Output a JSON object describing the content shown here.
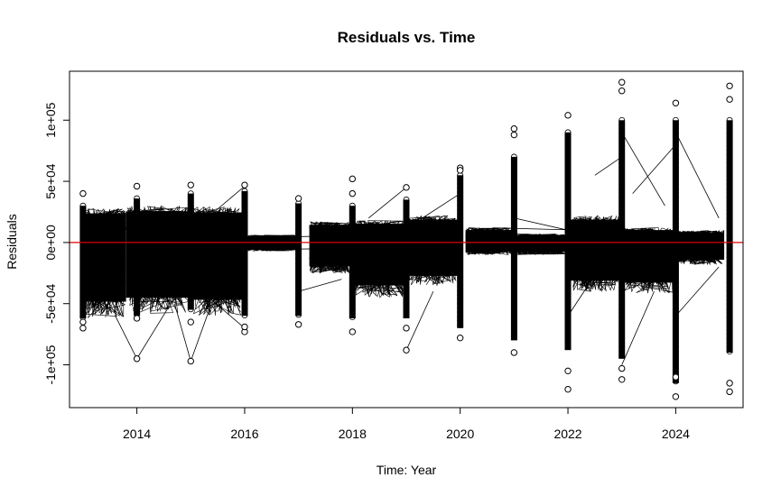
{
  "chart_data": {
    "type": "scatter",
    "title": "Residuals vs. Time",
    "xlabel": "Time: Year",
    "ylabel": "Residuals",
    "xlim": [
      2012.75,
      2025.25
    ],
    "ylim": [
      -135000,
      140000
    ],
    "x_ticks": [
      2014,
      2016,
      2018,
      2020,
      2022,
      2024
    ],
    "x_tick_labels": [
      "2014",
      "2016",
      "2018",
      "2020",
      "2022",
      "2024"
    ],
    "y_ticks": [
      -100000,
      -50000,
      0,
      50000,
      100000
    ],
    "y_tick_labels": [
      "-1e+05",
      "-5e+04",
      "0e+00",
      "5e+04",
      "1e+05"
    ],
    "reference_line": {
      "y": 0,
      "color": "#dd0000"
    },
    "grid": false,
    "line_color": "#000000",
    "band_ranges": [
      {
        "from": 2013.0,
        "to": 2013.8,
        "low": -62000,
        "high": 28000
      },
      {
        "from": 2013.8,
        "to": 2015.0,
        "low": -58000,
        "high": 30000
      },
      {
        "from": 2015.0,
        "to": 2015.95,
        "low": -60000,
        "high": 29000
      },
      {
        "from": 2016.0,
        "to": 2017.0,
        "low": -7000,
        "high": 6000
      },
      {
        "from": 2017.2,
        "to": 2017.95,
        "low": -25000,
        "high": 17000
      },
      {
        "from": 2018.0,
        "to": 2019.0,
        "low": -45000,
        "high": 18000
      },
      {
        "from": 2019.0,
        "to": 2019.95,
        "low": -35000,
        "high": 22000
      },
      {
        "from": 2020.1,
        "to": 2020.95,
        "low": -10000,
        "high": 12000
      },
      {
        "from": 2021.0,
        "to": 2021.95,
        "low": -10000,
        "high": 7000
      },
      {
        "from": 2022.05,
        "to": 2022.95,
        "low": -40000,
        "high": 22000
      },
      {
        "from": 2023.05,
        "to": 2023.95,
        "low": -42000,
        "high": 12000
      },
      {
        "from": 2024.05,
        "to": 2024.9,
        "low": -18000,
        "high": 10000
      }
    ],
    "year_columns": [
      {
        "x": 2013,
        "low": -62000,
        "high": 30000
      },
      {
        "x": 2014,
        "low": -60000,
        "high": 36000
      },
      {
        "x": 2015,
        "low": -55000,
        "high": 40000
      },
      {
        "x": 2016,
        "low": -60000,
        "high": 42000
      },
      {
        "x": 2017,
        "low": -60000,
        "high": 32000
      },
      {
        "x": 2018,
        "low": -62000,
        "high": 30000
      },
      {
        "x": 2019,
        "low": -62000,
        "high": 35000
      },
      {
        "x": 2020,
        "low": -70000,
        "high": 55000
      },
      {
        "x": 2021,
        "low": -80000,
        "high": 70000
      },
      {
        "x": 2022,
        "low": -88000,
        "high": 90000
      },
      {
        "x": 2023,
        "low": -95000,
        "high": 100000
      },
      {
        "x": 2024,
        "low": -115000,
        "high": 100000
      },
      {
        "x": 2025,
        "low": -90000,
        "high": 100000
      }
    ],
    "outliers": [
      {
        "x": 2013,
        "y": 40000
      },
      {
        "x": 2013,
        "y": -70000
      },
      {
        "x": 2013,
        "y": -65000
      },
      {
        "x": 2014,
        "y": 46000
      },
      {
        "x": 2014,
        "y": -95000
      },
      {
        "x": 2014,
        "y": -62000
      },
      {
        "x": 2015,
        "y": 47000
      },
      {
        "x": 2015,
        "y": -97000
      },
      {
        "x": 2015,
        "y": -65000
      },
      {
        "x": 2016,
        "y": 47000
      },
      {
        "x": 2016,
        "y": -73000
      },
      {
        "x": 2016,
        "y": -69000
      },
      {
        "x": 2017,
        "y": 36000
      },
      {
        "x": 2017,
        "y": -67000
      },
      {
        "x": 2018,
        "y": 52000
      },
      {
        "x": 2018,
        "y": -73000
      },
      {
        "x": 2018,
        "y": 40000
      },
      {
        "x": 2019,
        "y": 45000
      },
      {
        "x": 2019,
        "y": -88000
      },
      {
        "x": 2019,
        "y": -70000
      },
      {
        "x": 2020,
        "y": 61000
      },
      {
        "x": 2020,
        "y": -78000
      },
      {
        "x": 2020,
        "y": 59000
      },
      {
        "x": 2021,
        "y": 93000
      },
      {
        "x": 2021,
        "y": -90000
      },
      {
        "x": 2021,
        "y": 88000
      },
      {
        "x": 2022,
        "y": 104000
      },
      {
        "x": 2022,
        "y": -105000
      },
      {
        "x": 2022,
        "y": -120000
      },
      {
        "x": 2023,
        "y": 131000
      },
      {
        "x": 2023,
        "y": 124000
      },
      {
        "x": 2023,
        "y": -112000
      },
      {
        "x": 2023,
        "y": -103000
      },
      {
        "x": 2024,
        "y": 114000
      },
      {
        "x": 2024,
        "y": -126000
      },
      {
        "x": 2024,
        "y": -110000
      },
      {
        "x": 2025,
        "y": 128000
      },
      {
        "x": 2025,
        "y": 117000
      },
      {
        "x": 2025,
        "y": -122000
      },
      {
        "x": 2025,
        "y": -115000
      }
    ],
    "connector_segments": [
      {
        "x1": 2014,
        "y1": -95000,
        "x2": 2014.6,
        "y2": -52000
      },
      {
        "x1": 2013.6,
        "y1": -60000,
        "x2": 2014,
        "y2": -95000
      },
      {
        "x1": 2015,
        "y1": -97000,
        "x2": 2015.4,
        "y2": -48000
      },
      {
        "x1": 2014.7,
        "y1": -50000,
        "x2": 2015,
        "y2": -97000
      },
      {
        "x1": 2015.3,
        "y1": 20000,
        "x2": 2016,
        "y2": 46000
      },
      {
        "x1": 2015.2,
        "y1": -40000,
        "x2": 2016,
        "y2": -70000
      },
      {
        "x1": 2017,
        "y1": -40000,
        "x2": 2017.8,
        "y2": -30000
      },
      {
        "x1": 2018.3,
        "y1": 20000,
        "x2": 2019,
        "y2": 45000
      },
      {
        "x1": 2019,
        "y1": -88000,
        "x2": 2019.5,
        "y2": -40000
      },
      {
        "x1": 2019.3,
        "y1": 20000,
        "x2": 2020,
        "y2": 40000
      },
      {
        "x1": 2021,
        "y1": 20000,
        "x2": 2022,
        "y2": 10000
      },
      {
        "x1": 2022.5,
        "y1": 55000,
        "x2": 2023,
        "y2": 70000
      },
      {
        "x1": 2023,
        "y1": 90000,
        "x2": 2023.8,
        "y2": 30000
      },
      {
        "x1": 2023,
        "y1": -100000,
        "x2": 2023.6,
        "y2": -40000
      },
      {
        "x1": 2023.2,
        "y1": 40000,
        "x2": 2024,
        "y2": 80000
      },
      {
        "x1": 2024,
        "y1": 90000,
        "x2": 2024.8,
        "y2": 20000
      },
      {
        "x1": 2024,
        "y1": -60000,
        "x2": 2024.8,
        "y2": -20000
      },
      {
        "x1": 2022,
        "y1": -60000,
        "x2": 2022.6,
        "y2": -20000
      },
      {
        "x1": 2020.6,
        "y1": 12000,
        "x2": 2022.3,
        "y2": 10000
      },
      {
        "x1": 2016,
        "y1": 4000,
        "x2": 2018.5,
        "y2": 6000
      },
      {
        "x1": 2016,
        "y1": -6000,
        "x2": 2019.2,
        "y2": -4000
      },
      {
        "x1": 2016.1,
        "y1": 0,
        "x2": 2017,
        "y2": 3000
      }
    ]
  }
}
